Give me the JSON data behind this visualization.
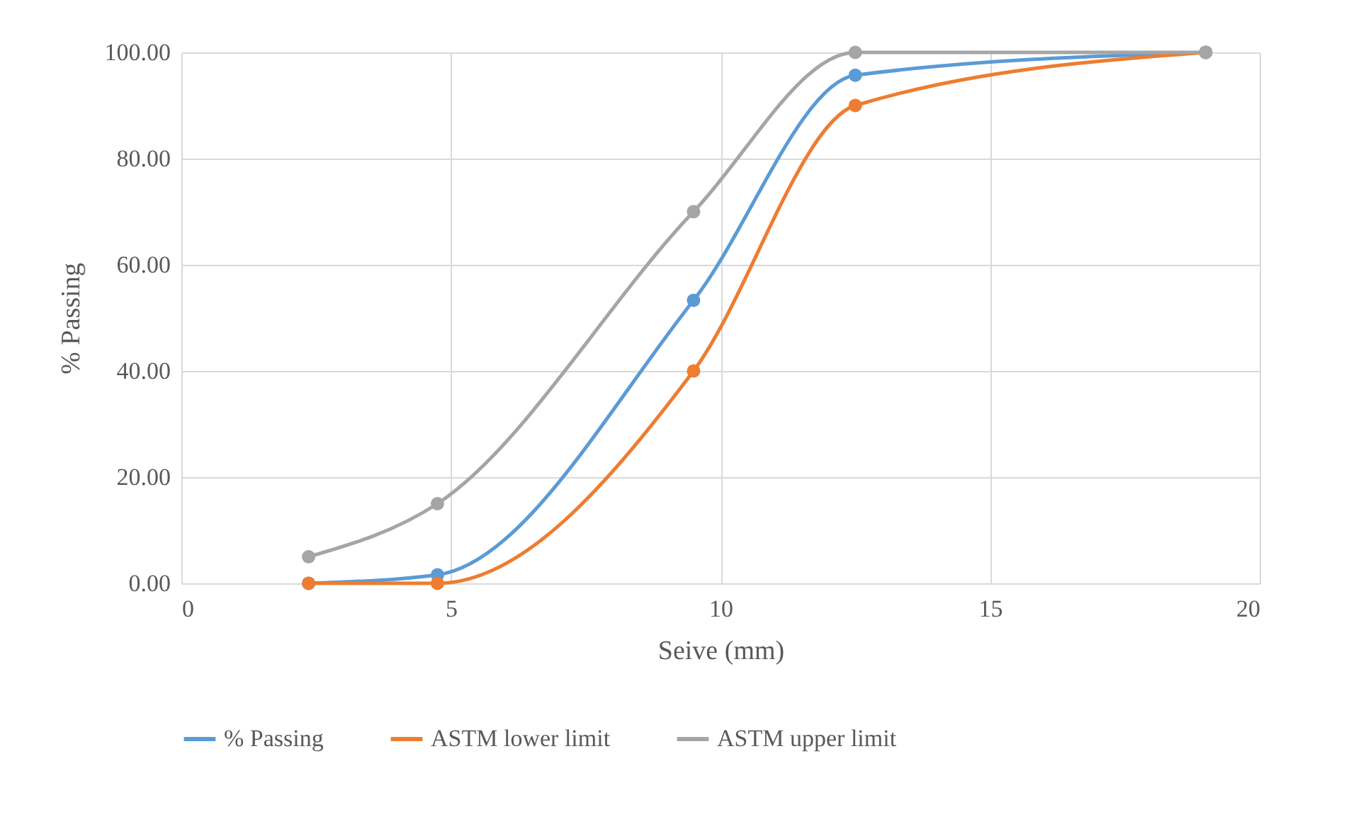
{
  "chart_data": {
    "type": "line",
    "xlabel": "Seive (mm)",
    "ylabel": "% Passing",
    "x": [
      2.36,
      4.75,
      9.5,
      12.5,
      19
    ],
    "series": [
      {
        "name": "% Passing",
        "color": "#5b9bd5",
        "values": [
          0,
          1.6,
          53.3,
          95.7,
          100
        ]
      },
      {
        "name": "ASTM lower limit",
        "color": "#ed7d31",
        "values": [
          0,
          0,
          40,
          90,
          100
        ]
      },
      {
        "name": "ASTM upper limit",
        "color": "#a5a5a5",
        "values": [
          5,
          15,
          70,
          100,
          100
        ]
      }
    ],
    "xlim": [
      0,
      20
    ],
    "xticks": [
      0,
      5,
      10,
      15,
      20
    ],
    "ylim": [
      0,
      100
    ],
    "yticks": [
      {
        "value": 0,
        "label": "0.00"
      },
      {
        "value": 20,
        "label": "20.00"
      },
      {
        "value": 40,
        "label": "40.00"
      },
      {
        "value": 60,
        "label": "60.00"
      },
      {
        "value": 80,
        "label": "80.00"
      },
      {
        "value": 100,
        "label": "100.00"
      }
    ],
    "grid": true,
    "legend": "bottom",
    "marker": "circle",
    "line_style": "solid"
  }
}
